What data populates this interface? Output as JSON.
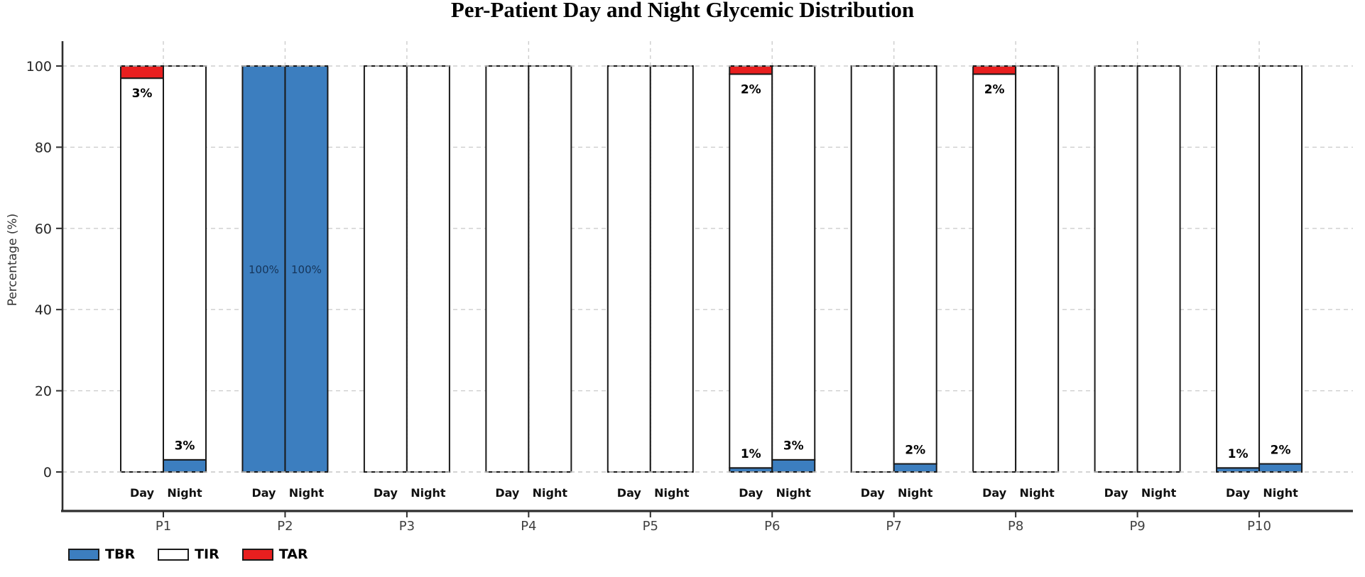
{
  "chart_data": {
    "type": "bar",
    "title": "Per-Patient Day and Night Glycemic Distribution",
    "ylabel": "Percentage (%)",
    "ylim": [
      0,
      100
    ],
    "yticks": [
      0,
      20,
      40,
      60,
      80,
      100
    ],
    "grid": "dashed horizontal at y ticks, dashed vertical at each patient center",
    "legend_position": "bottom-left",
    "bar_sublabels": [
      "Day",
      "Night"
    ],
    "legend": [
      {
        "name": "TBR",
        "color": "#3c7ebf"
      },
      {
        "name": "TIR",
        "color": "#ffffff"
      },
      {
        "name": "TAR",
        "color": "#e81f1f"
      }
    ],
    "colors": {
      "tbr": "#3c7ebf",
      "tir": "#ffffff",
      "tar": "#e81f1f",
      "segment_edge": "#1a1a1a",
      "grid": "#cdcdcd",
      "pair_divider": "#1c1c1c",
      "axis": "#2e2e2e",
      "tick_label": "#262626",
      "patient_label": "#3f3f3f",
      "full_bar_label": "#16355a",
      "annotation": "#000000"
    },
    "patients": [
      {
        "id": "P1",
        "day": {
          "tbr": 0,
          "tir": 97,
          "tar": 3
        },
        "night": {
          "tbr": 3,
          "tir": 97,
          "tar": 0
        }
      },
      {
        "id": "P2",
        "day": {
          "tbr": 100,
          "tir": 0,
          "tar": 0
        },
        "night": {
          "tbr": 100,
          "tir": 0,
          "tar": 0
        }
      },
      {
        "id": "P3",
        "day": {
          "tbr": 0,
          "tir": 100,
          "tar": 0
        },
        "night": {
          "tbr": 0,
          "tir": 100,
          "tar": 0
        }
      },
      {
        "id": "P4",
        "day": {
          "tbr": 0,
          "tir": 100,
          "tar": 0
        },
        "night": {
          "tbr": 0,
          "tir": 100,
          "tar": 0
        }
      },
      {
        "id": "P5",
        "day": {
          "tbr": 0,
          "tir": 100,
          "tar": 0
        },
        "night": {
          "tbr": 0,
          "tir": 100,
          "tar": 0
        }
      },
      {
        "id": "P6",
        "day": {
          "tbr": 1,
          "tir": 97,
          "tar": 2
        },
        "night": {
          "tbr": 3,
          "tir": 97,
          "tar": 0
        }
      },
      {
        "id": "P7",
        "day": {
          "tbr": 0,
          "tir": 100,
          "tar": 0
        },
        "night": {
          "tbr": 2,
          "tir": 98,
          "tar": 0
        }
      },
      {
        "id": "P8",
        "day": {
          "tbr": 0,
          "tir": 98,
          "tar": 2
        },
        "night": {
          "tbr": 0,
          "tir": 100,
          "tar": 0
        }
      },
      {
        "id": "P9",
        "day": {
          "tbr": 0,
          "tir": 100,
          "tar": 0
        },
        "night": {
          "tbr": 0,
          "tir": 100,
          "tar": 0
        }
      },
      {
        "id": "P10",
        "day": {
          "tbr": 1,
          "tir": 99,
          "tar": 0
        },
        "night": {
          "tbr": 2,
          "tir": 98,
          "tar": 0
        }
      }
    ],
    "annotations": {
      "tbr_label_suffix": "%",
      "tar_label_suffix": "%",
      "full_bar_label": "100%"
    }
  }
}
